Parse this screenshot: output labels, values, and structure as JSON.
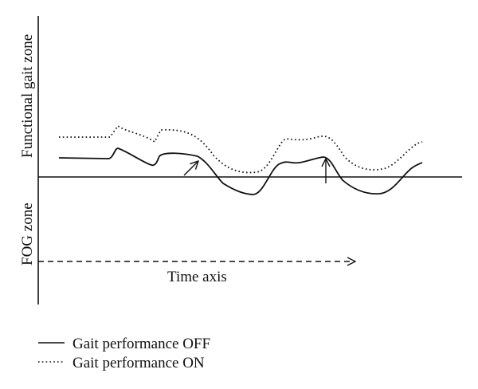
{
  "labels": {
    "upper_zone": "Functional gait zone",
    "lower_zone": "FOG zone",
    "time_axis": "Time axis"
  },
  "legend": [
    {
      "style": "solid",
      "label": "Gait performance OFF"
    },
    {
      "style": "dotted",
      "label": "Gait performance ON"
    }
  ],
  "colors": {
    "ink": "#111111",
    "background": "#ffffff"
  }
}
